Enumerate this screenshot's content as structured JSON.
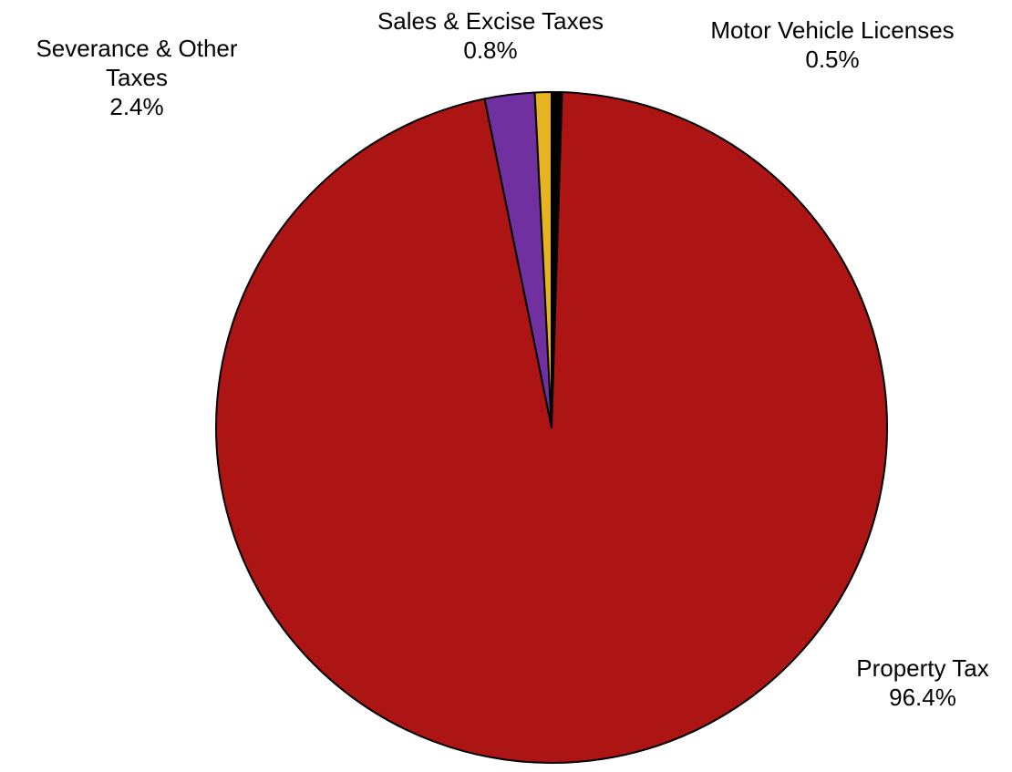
{
  "chart_data": {
    "type": "pie",
    "title": "",
    "slices": [
      {
        "label": "Motor Vehicle Licenses",
        "value": 0.5,
        "value_label": "0.5%",
        "color": "#000000",
        "label_lines": [
          "Motor Vehicle Licenses"
        ]
      },
      {
        "label": "Property Tax",
        "value": 96.4,
        "value_label": "96.4%",
        "color": "#ad1515",
        "label_lines": [
          "Property Tax"
        ]
      },
      {
        "label": "Severance & Other Taxes",
        "value": 2.4,
        "value_label": "2.4%",
        "color": "#7030a0",
        "label_lines": [
          "Severance & Other",
          "Taxes"
        ]
      },
      {
        "label": "Sales & Excise Taxes",
        "value": 0.8,
        "value_label": "0.8%",
        "color": "#e6b422",
        "label_lines": [
          "Sales & Excise Taxes"
        ]
      }
    ],
    "start_angle": "top",
    "direction": "clockwise",
    "slice_outline": "#000000",
    "legend": "none"
  }
}
